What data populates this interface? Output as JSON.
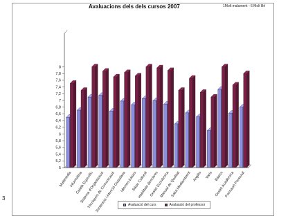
{
  "page_number": "3",
  "chart_data": {
    "type": "bar",
    "title": "Avaluacions dels  dels cursos 2007",
    "note": "1Molt malament  -  6 Molt Bé",
    "xlabel": "",
    "ylabel": "",
    "ylim": [
      5,
      9
    ],
    "yticks": [
      "5",
      "5,2",
      "5,4",
      "5,6",
      "5,8",
      "6",
      "6,2",
      "6,4",
      "6,6",
      "6,8",
      "7",
      "7,2",
      "7,4",
      "7,6",
      "7,8",
      "8"
    ],
    "categories": [
      "Multimèdia",
      "Informàtica",
      "Català Específic",
      "Sistema d'Organització",
      "Tècniques de Comunicació",
      "Sentencia i Atenció Ciutadana",
      "Idiomes bàsics",
      "Bàsic Cultural",
      "Habilitats directives",
      "Gestió Econòmica",
      "Manual de Qualitat",
      "Salut Mediambient",
      "Anglès",
      "Varis",
      "Bàsics",
      "Gestió Acadèmica",
      "Formació Personal"
    ],
    "series": [
      {
        "name": "Avaluació del curs",
        "color": "#8d8ee0",
        "values": [
          6.5,
          6.71,
          7.1,
          7.15,
          6.68,
          6.98,
          6.87,
          7.05,
          6.99,
          6.89,
          6.3,
          6.63,
          6.51,
          6.1,
          7.33,
          6.62,
          6.8
        ]
      },
      {
        "name": "Avaluació del professor",
        "color": "#7a1f45",
        "values": [
          7.51,
          7.3,
          8.0,
          7.87,
          7.7,
          7.83,
          7.73,
          8.0,
          7.97,
          7.89,
          7.3,
          7.66,
          7.24,
          7.1,
          8.0,
          7.46,
          7.8
        ]
      }
    ],
    "grid": false,
    "legend_position": "bottom"
  }
}
